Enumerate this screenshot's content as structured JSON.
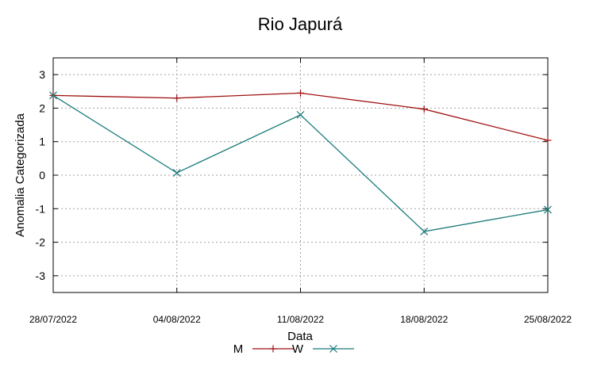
{
  "chart_data": {
    "type": "line",
    "title": "Rio Japurá",
    "xlabel": "Data",
    "ylabel": "Anomalia Categorizada",
    "categories": [
      "28/07/2022",
      "04/08/2022",
      "11/08/2022",
      "18/08/2022",
      "25/08/2022"
    ],
    "ylim": [
      -3.5,
      3.5
    ],
    "yticks": [
      "3",
      "2",
      "1",
      "0",
      "-1",
      "-2",
      "-3"
    ],
    "ytick_values": [
      3,
      2,
      1,
      0,
      -1,
      -2,
      -3
    ],
    "grid": true,
    "legend_position": "bottom-center",
    "series": [
      {
        "name": "M",
        "color": "#a01010",
        "marker": "plus",
        "values": [
          2.38,
          2.3,
          2.45,
          1.97,
          1.04
        ]
      },
      {
        "name": "W",
        "color": "#1a7a7a",
        "marker": "cross",
        "values": [
          2.38,
          0.07,
          1.8,
          -1.68,
          -1.03
        ]
      }
    ]
  }
}
